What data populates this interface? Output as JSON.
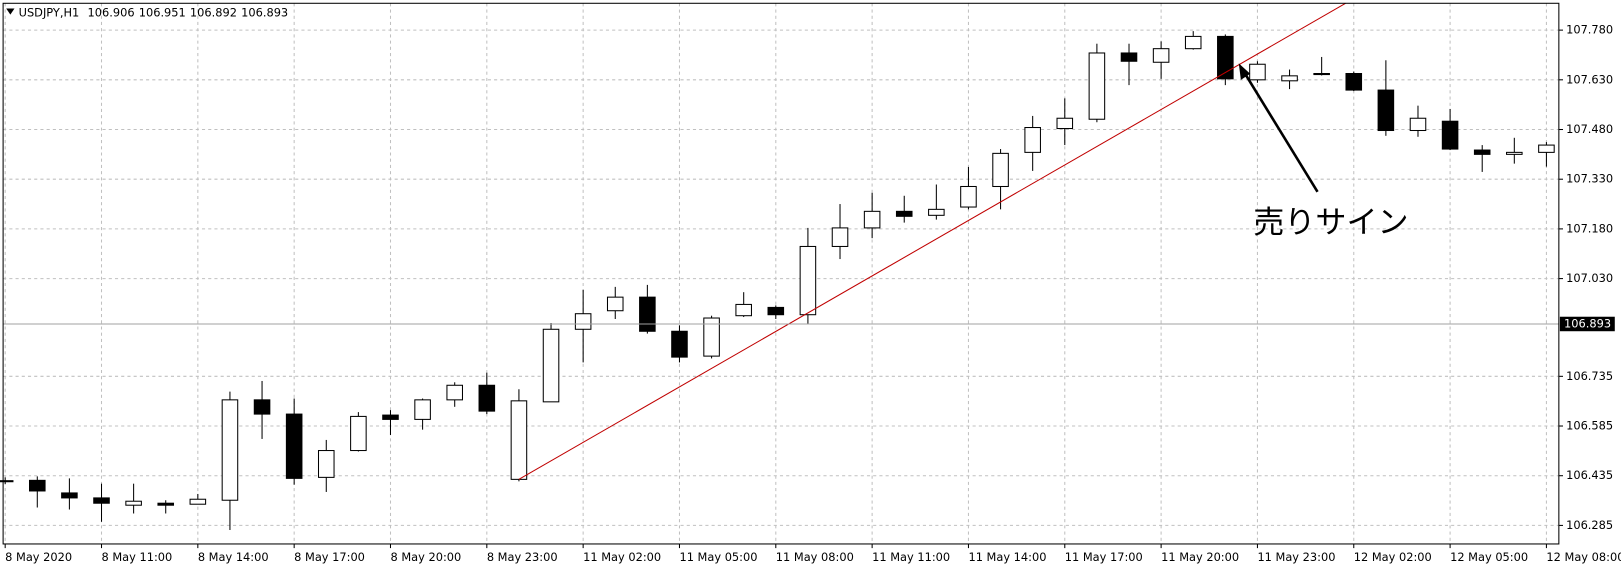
{
  "chart_data": {
    "type": "candlestick",
    "header": {
      "symbol": "USDJPY,H1",
      "prices": [
        106.906,
        106.951,
        106.892,
        106.893
      ]
    },
    "categories": [
      "8 May 2020",
      null,
      null,
      "8 May 11:00",
      null,
      null,
      "8 May 14:00",
      null,
      null,
      "8 May 17:00",
      null,
      null,
      "8 May 20:00",
      null,
      null,
      "8 May 23:00",
      null,
      null,
      "11 May 02:00",
      null,
      null,
      "11 May 05:00",
      null,
      null,
      "11 May 08:00",
      null,
      null,
      "11 May 11:00",
      null,
      null,
      "11 May 14:00",
      null,
      null,
      "11 May 17:00",
      null,
      null,
      "11 May 20:00",
      null,
      null,
      "11 May 23:00",
      null,
      null,
      "12 May 02:00",
      null,
      null,
      "12 May 05:00",
      null,
      null,
      "12 May 08:00"
    ],
    "open": [
      106.42,
      106.421,
      106.383,
      106.368,
      106.346,
      106.352,
      106.349,
      106.361,
      106.664,
      106.621,
      106.43,
      106.511,
      106.618,
      106.605,
      106.664,
      106.708,
      106.424,
      106.658,
      106.877,
      106.933,
      106.974,
      106.871,
      106.796,
      106.918,
      106.943,
      106.921,
      107.127,
      107.183,
      107.233,
      107.221,
      107.246,
      107.308,
      107.411,
      107.483,
      107.511,
      107.711,
      107.683,
      107.724,
      107.761,
      107.63,
      107.627,
      107.646,
      107.649,
      107.599,
      107.477,
      107.505,
      107.418,
      107.405,
      107.411
    ],
    "high": [
      106.43,
      106.433,
      106.427,
      106.411,
      106.411,
      106.361,
      106.38,
      106.689,
      106.721,
      106.668,
      106.543,
      106.627,
      106.633,
      106.668,
      106.717,
      106.746,
      106.696,
      106.896,
      106.996,
      107.005,
      107.011,
      106.889,
      106.918,
      106.989,
      106.949,
      107.183,
      107.255,
      107.289,
      107.28,
      107.314,
      107.367,
      107.421,
      107.521,
      107.574,
      107.739,
      107.739,
      107.746,
      107.777,
      107.767,
      107.686,
      107.661,
      107.699,
      107.655,
      107.689,
      107.552,
      107.542,
      107.433,
      107.455,
      107.442
    ],
    "low": [
      106.41,
      106.339,
      106.333,
      106.296,
      106.321,
      106.321,
      106.349,
      106.271,
      106.546,
      106.408,
      106.386,
      106.508,
      106.558,
      106.574,
      106.643,
      106.621,
      106.418,
      106.658,
      106.777,
      106.908,
      106.864,
      106.777,
      106.789,
      106.914,
      106.908,
      106.893,
      107.089,
      107.152,
      107.199,
      107.208,
      107.239,
      107.239,
      107.355,
      107.433,
      107.502,
      107.614,
      107.633,
      107.721,
      107.614,
      107.621,
      107.602,
      107.643,
      107.596,
      107.461,
      107.458,
      107.418,
      107.352,
      107.377,
      107.368
    ],
    "close": [
      106.42,
      106.389,
      106.368,
      106.352,
      106.358,
      106.346,
      106.364,
      106.664,
      106.621,
      106.427,
      106.511,
      106.614,
      106.605,
      106.664,
      106.708,
      106.63,
      106.661,
      106.877,
      106.924,
      106.974,
      106.871,
      106.793,
      106.911,
      106.952,
      106.921,
      107.127,
      107.183,
      107.233,
      107.218,
      107.239,
      107.308,
      107.408,
      107.486,
      107.514,
      107.711,
      107.686,
      107.724,
      107.761,
      107.633,
      107.677,
      107.642,
      107.649,
      107.599,
      107.477,
      107.514,
      107.421,
      107.405,
      107.411,
      107.433
    ],
    "ylim": [
      106.229,
      107.861
    ],
    "yticks": [
      {
        "value": 107.78,
        "label": "107.780"
      },
      {
        "value": 107.63,
        "label": "107.630"
      },
      {
        "value": 107.48,
        "label": "107.480"
      },
      {
        "value": 107.33,
        "label": "107.330"
      },
      {
        "value": 107.18,
        "label": "107.180"
      },
      {
        "value": 107.03,
        "label": "107.030"
      },
      106.735,
      106.585,
      106.435,
      106.285
    ],
    "grid": true,
    "last_price": 106.893,
    "trendline": {
      "from": [
        16,
        106.424
      ],
      "to": [
        38,
        107.652
      ],
      "color": "#c00000"
    },
    "annotation": "売りサイン"
  }
}
